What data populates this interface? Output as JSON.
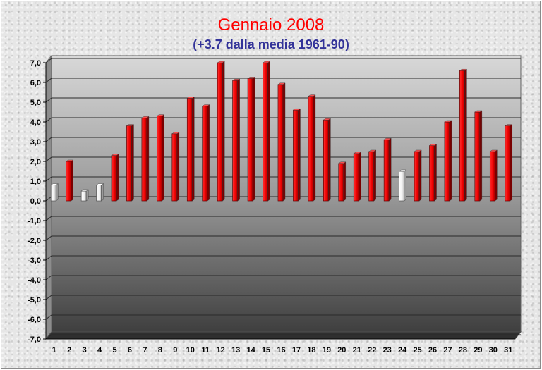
{
  "title": "Gennaio 2008",
  "subtitle": "(+3.7 dalla media 1961-90)",
  "colors": {
    "positive_bar": "#ff0000",
    "highlight_bar": "#ffffff",
    "title": "#ff0000",
    "subtitle": "#333399"
  },
  "chart_data": {
    "type": "bar",
    "title": "Gennaio 2008",
    "subtitle": "(+3.7 dalla media 1961-90)",
    "categories": [
      "1",
      "2",
      "3",
      "4",
      "5",
      "6",
      "7",
      "8",
      "9",
      "10",
      "11",
      "12",
      "13",
      "14",
      "15",
      "16",
      "17",
      "18",
      "19",
      "20",
      "21",
      "22",
      "23",
      "24",
      "25",
      "26",
      "27",
      "28",
      "29",
      "30",
      "31"
    ],
    "values": [
      0.8,
      2.0,
      0.5,
      0.8,
      2.3,
      3.8,
      4.2,
      4.3,
      3.4,
      5.2,
      4.8,
      7.0,
      6.1,
      6.2,
      7.0,
      5.9,
      4.6,
      5.3,
      4.1,
      1.9,
      2.4,
      2.5,
      3.1,
      1.5,
      2.5,
      2.8,
      4.0,
      6.6,
      4.5,
      2.5,
      3.8
    ],
    "bar_colors": [
      "white",
      "red",
      "white",
      "white",
      "red",
      "red",
      "red",
      "red",
      "red",
      "red",
      "red",
      "red",
      "red",
      "red",
      "red",
      "red",
      "red",
      "red",
      "red",
      "red",
      "red",
      "red",
      "red",
      "white",
      "red",
      "red",
      "red",
      "red",
      "red",
      "red",
      "red"
    ],
    "ylim": [
      -7.0,
      7.0
    ],
    "ytick_labels": [
      "7,0",
      "6,0",
      "5,0",
      "4,0",
      "3,0",
      "2,0",
      "1,0",
      "0,0",
      "-1,0",
      "-2,0",
      "-3,0",
      "-4,0",
      "-5,0",
      "-6,0",
      "-7,0"
    ],
    "xlabel": "",
    "ylabel": "",
    "grid": true,
    "legend": "none"
  }
}
